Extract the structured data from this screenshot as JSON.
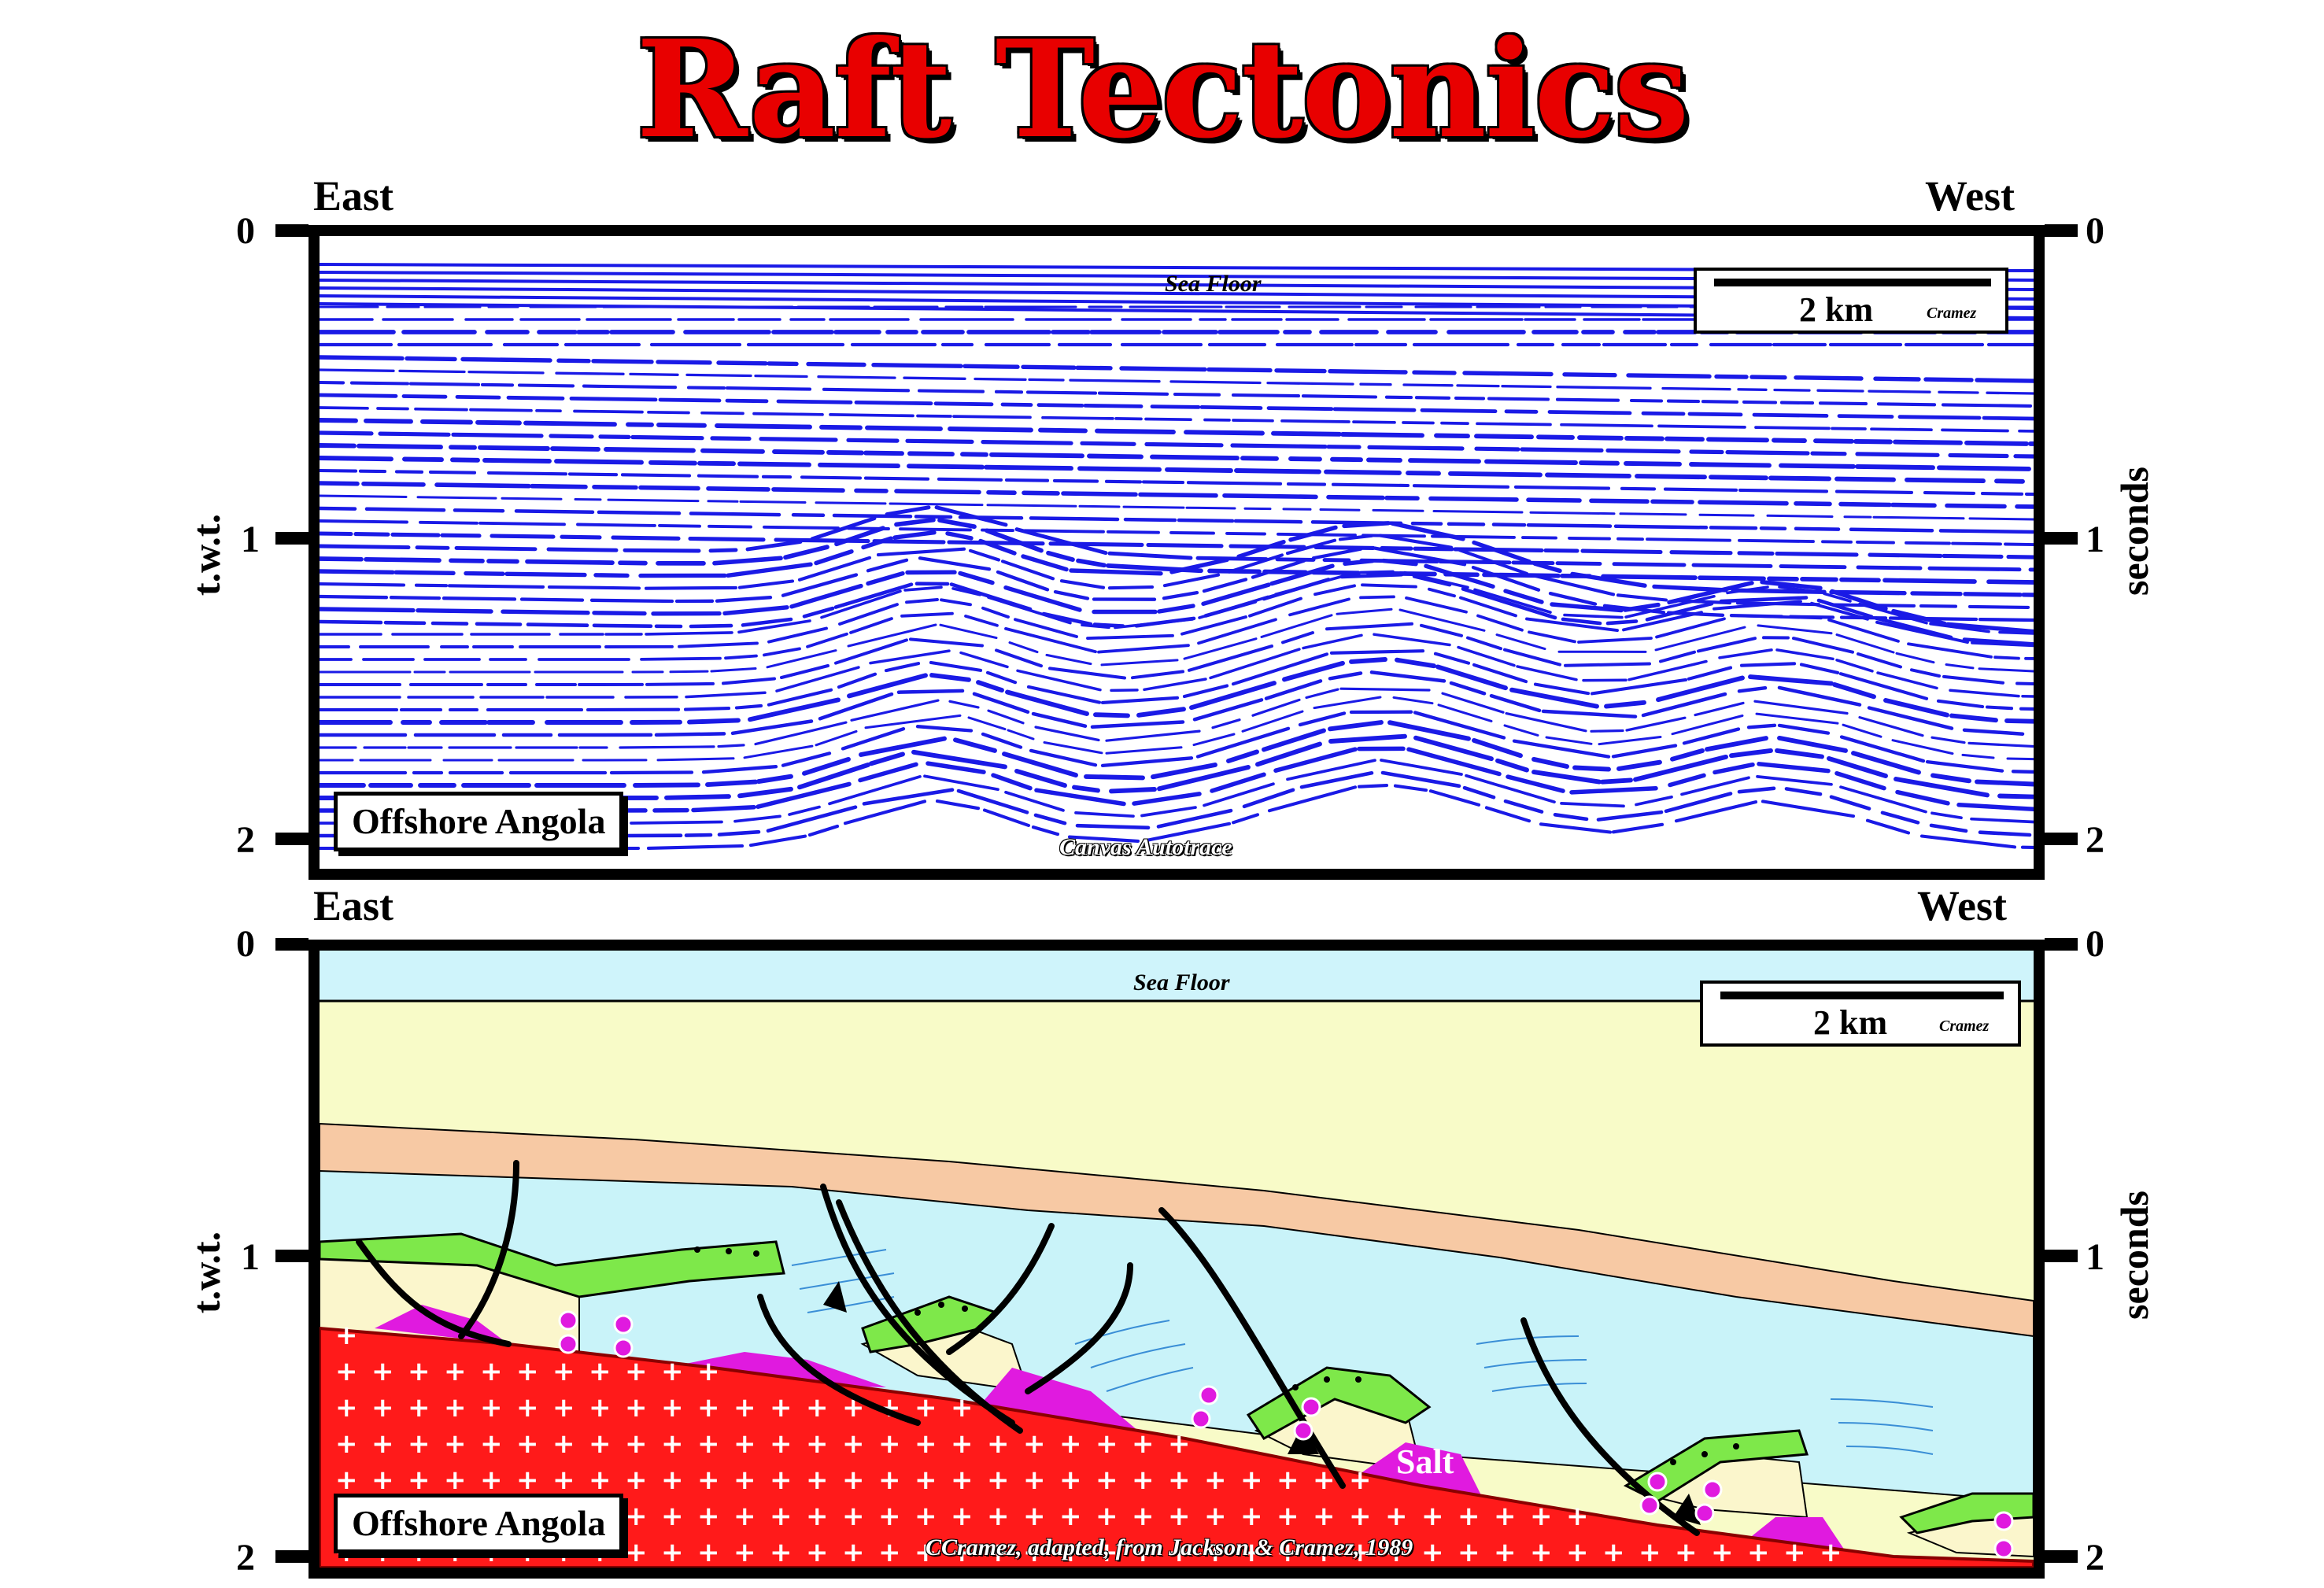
{
  "title": "Raft Tectonics",
  "top_panel": {
    "left_label": "East",
    "right_label": "West",
    "left_axis_label": "t.w.t.",
    "right_axis_label": "seconds",
    "ticks": [
      "0",
      "1",
      "2"
    ],
    "sea_floor": "Sea Floor",
    "scale": "2 km",
    "scale_credit": "Cramez",
    "location": "Offshore Angola",
    "credit": "Canvas Autotrace",
    "reflector_color": "#1a1ae6"
  },
  "bottom_panel": {
    "left_label": "East",
    "right_label": "West",
    "left_axis_label": "t.w.t.",
    "right_axis_label": "seconds",
    "ticks": [
      "0",
      "1",
      "2"
    ],
    "sea_floor": "Sea Floor",
    "scale": "2 km",
    "scale_credit": "Cramez",
    "location": "Offshore Angola",
    "salt_label": "Salt",
    "credit": "CCramez, adapted, from Jackson & Cramez, 1989",
    "colors": {
      "water": "#cff4fb",
      "overburden": "#f8fbc8",
      "orange_layer": "#f7c9a4",
      "light_blue": "#c9f3f9",
      "cream": "#fbf6cc",
      "raft_green": "#7ee84a",
      "salt": "#e01adf",
      "basement": "#ff1a1a"
    }
  }
}
